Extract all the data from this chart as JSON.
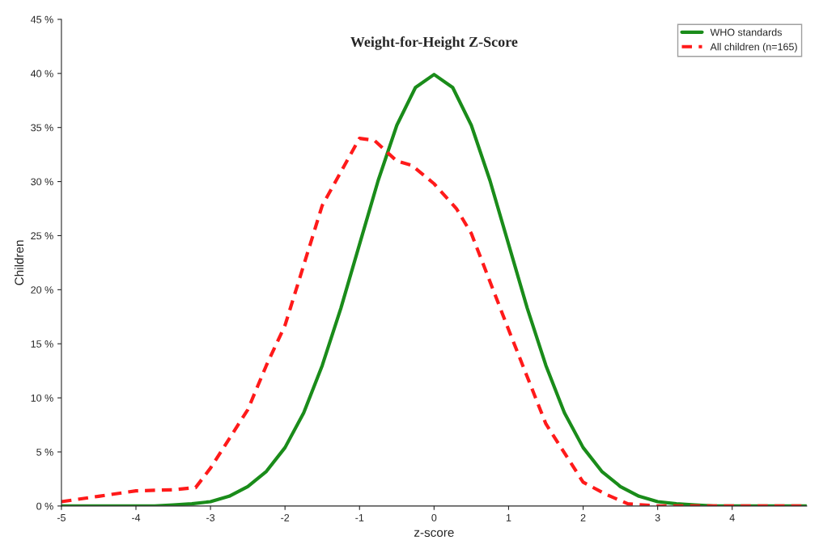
{
  "chart_data": {
    "type": "line",
    "title": "Weight-for-Height Z-Score",
    "xlabel": "z-score",
    "ylabel": "Children",
    "xlim": [
      -5,
      5
    ],
    "xticks": [
      -5,
      -4,
      -3,
      -2,
      -1,
      0,
      1,
      2,
      3,
      4
    ],
    "ylim": [
      0,
      45
    ],
    "yticks": [
      {
        "value": 0,
        "label": "0 %"
      },
      {
        "value": 5,
        "label": "5 %"
      },
      {
        "value": 10,
        "label": "10 %"
      },
      {
        "value": 15,
        "label": "15 %"
      },
      {
        "value": 20,
        "label": "20 %"
      },
      {
        "value": 25,
        "label": "25 %"
      },
      {
        "value": 30,
        "label": "30 %"
      },
      {
        "value": 35,
        "label": "35 %"
      },
      {
        "value": 40,
        "label": "40 %"
      },
      {
        "value": 45,
        "label": "45 %"
      }
    ],
    "grid": false,
    "legend": "top right",
    "series": [
      {
        "name": "WHO standards",
        "color": "#1a8c1a",
        "line_style": "solid",
        "x": [
          -5,
          -4.5,
          -4,
          -3.75,
          -3.5,
          -3.25,
          -3,
          -2.75,
          -2.5,
          -2.25,
          -2,
          -1.75,
          -1.5,
          -1.25,
          -1,
          -0.75,
          -0.5,
          -0.25,
          0,
          0.25,
          0.5,
          0.75,
          1,
          1.25,
          1.5,
          1.75,
          2,
          2.25,
          2.5,
          2.75,
          3,
          3.25,
          3.5,
          3.75,
          4,
          4.5,
          5
        ],
        "values": [
          0,
          0,
          0,
          0,
          0.1,
          0.2,
          0.4,
          0.9,
          1.8,
          3.2,
          5.4,
          8.6,
          13,
          18.3,
          24.2,
          30.1,
          35.2,
          38.7,
          39.9,
          38.7,
          35.2,
          30.1,
          24.2,
          18.3,
          13,
          8.6,
          5.4,
          3.2,
          1.8,
          0.9,
          0.4,
          0.2,
          0.1,
          0,
          0,
          0,
          0
        ]
      },
      {
        "name": "All children (n=165)",
        "color": "#ff1a1a",
        "line_style": "dashed",
        "x": [
          -5,
          -4.5,
          -4,
          -3.5,
          -3.2,
          -3,
          -2.5,
          -2.25,
          -2,
          -1.5,
          -1,
          -0.8,
          -0.5,
          -0.3,
          0,
          0.3,
          0.5,
          1,
          1.5,
          2,
          2.3,
          2.6,
          3,
          4,
          5
        ],
        "values": [
          0.4,
          0.9,
          1.4,
          1.5,
          1.7,
          3.5,
          8.9,
          13,
          16.7,
          27.8,
          34,
          33.8,
          31.9,
          31.5,
          29.8,
          27.5,
          25.2,
          16.3,
          7.6,
          2.2,
          1.1,
          0.2,
          0,
          0,
          0
        ]
      }
    ]
  }
}
